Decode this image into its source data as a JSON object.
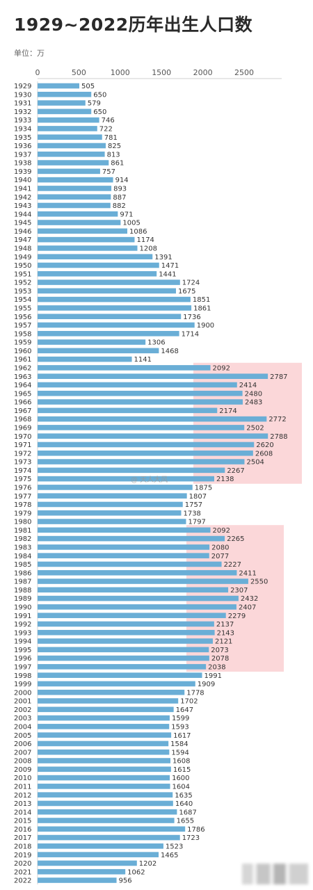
{
  "title": "1929~2022历年出生人口数",
  "unit_label": "单位：万",
  "watermark": "@ 天人大风",
  "chart_data": {
    "type": "bar",
    "orientation": "horizontal",
    "title": "1929~2022历年出生人口数",
    "unit": "万",
    "xlim": [
      0,
      2900
    ],
    "xticks": [
      0,
      500,
      1000,
      1500,
      2000,
      2500
    ],
    "grid": false,
    "bar_color": "#6aaed6",
    "highlight_color": "#f9c9cc",
    "highlight_ranges": [
      [
        "1962",
        "1975"
      ],
      [
        "1981",
        "1997"
      ]
    ],
    "categories": [
      "1929",
      "1930",
      "1931",
      "1932",
      "1933",
      "1934",
      "1935",
      "1936",
      "1937",
      "1938",
      "1939",
      "1940",
      "1941",
      "1942",
      "1943",
      "1944",
      "1945",
      "1946",
      "1947",
      "1948",
      "1949",
      "1950",
      "1951",
      "1952",
      "1953",
      "1954",
      "1955",
      "1956",
      "1957",
      "1958",
      "1959",
      "1960",
      "1961",
      "1962",
      "1963",
      "1964",
      "1965",
      "1966",
      "1967",
      "1968",
      "1969",
      "1970",
      "1971",
      "1972",
      "1973",
      "1974",
      "1975",
      "1976",
      "1977",
      "1978",
      "1979",
      "1980",
      "1981",
      "1982",
      "1983",
      "1984",
      "1985",
      "1986",
      "1987",
      "1988",
      "1989",
      "1990",
      "1991",
      "1992",
      "1993",
      "1994",
      "1995",
      "1996",
      "1997",
      "1998",
      "1999",
      "2000",
      "2001",
      "2002",
      "2003",
      "2004",
      "2005",
      "2006",
      "2007",
      "2008",
      "2009",
      "2010",
      "2011",
      "2012",
      "2013",
      "2014",
      "2015",
      "2016",
      "2017",
      "2018",
      "2019",
      "2020",
      "2021",
      "2022"
    ],
    "values": [
      505,
      650,
      579,
      650,
      746,
      722,
      781,
      825,
      813,
      861,
      757,
      914,
      893,
      887,
      882,
      971,
      1005,
      1086,
      1174,
      1208,
      1391,
      1471,
      1441,
      1724,
      1675,
      1851,
      1861,
      1736,
      1900,
      1714,
      1306,
      1468,
      1141,
      2092,
      2787,
      2414,
      2480,
      2483,
      2174,
      2772,
      2502,
      2788,
      2620,
      2608,
      2504,
      2267,
      2138,
      1875,
      1807,
      1757,
      1738,
      1797,
      2092,
      2265,
      2080,
      2077,
      2227,
      2411,
      2550,
      2307,
      2432,
      2407,
      2279,
      2137,
      2143,
      2121,
      2073,
      2078,
      2038,
      1991,
      1909,
      1778,
      1702,
      1647,
      1599,
      1593,
      1617,
      1584,
      1594,
      1608,
      1615,
      1600,
      1604,
      1635,
      1640,
      1687,
      1655,
      1786,
      1723,
      1523,
      1465,
      1202,
      1062,
      956
    ]
  }
}
